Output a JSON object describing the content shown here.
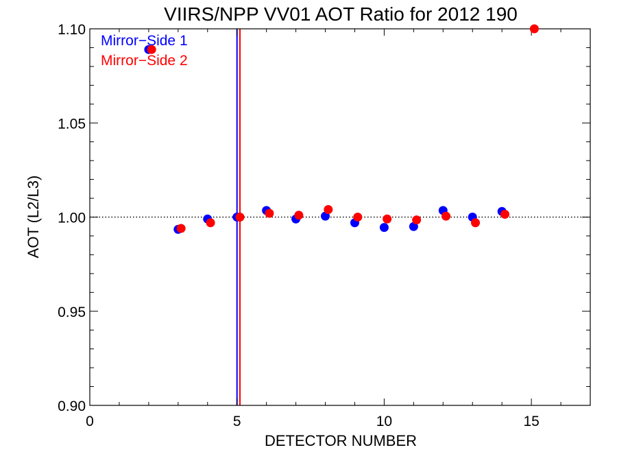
{
  "chart_data": {
    "type": "scatter",
    "title": "VIIRS/NPP VV01 AOT Ratio for 2012 190",
    "xlabel": "DETECTOR NUMBER",
    "ylabel": "AOT (L2/L3)",
    "xlim": [
      0,
      17
    ],
    "ylim": [
      0.9,
      1.1
    ],
    "x_ticks": [
      0,
      5,
      10,
      15
    ],
    "y_ticks": [
      0.9,
      0.95,
      1.0,
      1.05,
      1.1
    ],
    "x_tick_labels": [
      "0",
      "5",
      "10",
      "15"
    ],
    "y_tick_labels": [
      "0.90",
      "0.95",
      "1.00",
      "1.05",
      "1.10"
    ],
    "reference_line": {
      "y": 1.0,
      "style": "dotted"
    },
    "vertical_lines": [
      {
        "x": 5.0,
        "color": "#0000ff"
      },
      {
        "x": 5.1,
        "color": "#ff0000"
      }
    ],
    "legend_position": "top-left",
    "series": [
      {
        "name": "Mirror−Side 1",
        "color": "#0000ff",
        "x": [
          2,
          3,
          4,
          5,
          6,
          7,
          8,
          9,
          10,
          11,
          12,
          13,
          14
        ],
        "y": [
          1.089,
          0.9935,
          0.999,
          1.0,
          1.0035,
          0.999,
          1.0005,
          0.997,
          0.9945,
          0.995,
          1.0035,
          1.0,
          1.003
        ]
      },
      {
        "name": "Mirror−Side 2",
        "color": "#ff0000",
        "x": [
          2.1,
          3.1,
          4.1,
          5.1,
          6.1,
          7.1,
          8.1,
          9.1,
          10.1,
          11.1,
          12.1,
          13.1,
          14.1,
          15.1
        ],
        "y": [
          1.089,
          0.994,
          0.997,
          1.0,
          1.002,
          1.001,
          1.004,
          1.0,
          0.999,
          0.9985,
          1.0005,
          0.997,
          1.0015,
          1.1
        ]
      }
    ]
  }
}
